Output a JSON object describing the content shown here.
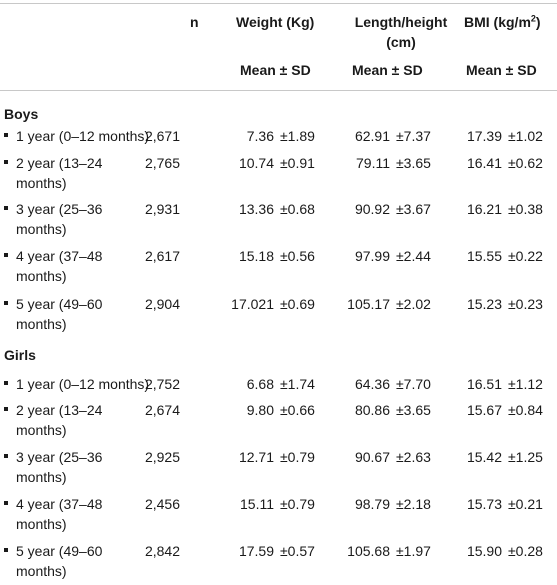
{
  "headers": {
    "n": "n",
    "weight": "Weight (Kg)",
    "length_line1": "Length/height",
    "length_line2": "(cm)",
    "bmi_prefix": "BMI (kg/m",
    "bmi_sup": "2",
    "bmi_suffix": ")",
    "mean_sd": "Mean ± SD"
  },
  "groups": [
    {
      "title": "Boys",
      "rows": [
        {
          "label1": "1 year (0–12 months)",
          "label2": "",
          "n": "2,671",
          "w_mean": "7.36",
          "w_sd": "±1.89",
          "l_mean": "62.91",
          "l_sd": "±7.37",
          "b_mean": "17.39",
          "b_sd": "±1.02"
        },
        {
          "label1": "2 year (13–24",
          "label2": "months)",
          "n": "2,765",
          "w_mean": "10.74",
          "w_sd": "±0.91",
          "l_mean": "79.11",
          "l_sd": "±3.65",
          "b_mean": "16.41",
          "b_sd": "±0.62"
        },
        {
          "label1": "3 year (25–36",
          "label2": "months)",
          "n": "2,931",
          "w_mean": "13.36",
          "w_sd": "±0.68",
          "l_mean": "90.92",
          "l_sd": "±3.67",
          "b_mean": "16.21",
          "b_sd": "±0.38"
        },
        {
          "label1": "4 year (37–48",
          "label2": "months)",
          "n": "2,617",
          "w_mean": "15.18",
          "w_sd": "±0.56",
          "l_mean": "97.99",
          "l_sd": "±2.44",
          "b_mean": "15.55",
          "b_sd": "±0.22"
        },
        {
          "label1": "5 year (49–60",
          "label2": "months)",
          "n": "2,904",
          "w_mean": "17.021",
          "w_sd": "±0.69",
          "l_mean": "105.17",
          "l_sd": "±2.02",
          "b_mean": "15.23",
          "b_sd": "±0.23"
        }
      ]
    },
    {
      "title": "Girls",
      "rows": [
        {
          "label1": "1 year (0–12 months)",
          "label2": "",
          "n": "2,752",
          "w_mean": "6.68",
          "w_sd": "±1.74",
          "l_mean": "64.36",
          "l_sd": "±7.70",
          "b_mean": "16.51",
          "b_sd": "±1.12"
        },
        {
          "label1": "2 year (13–24",
          "label2": "months)",
          "n": "2,674",
          "w_mean": "9.80",
          "w_sd": "±0.66",
          "l_mean": "80.86",
          "l_sd": "±3.65",
          "b_mean": "15.67",
          "b_sd": "±0.84"
        },
        {
          "label1": "3 year (25–36",
          "label2": "months)",
          "n": "2,925",
          "w_mean": "12.71",
          "w_sd": "±0.79",
          "l_mean": "90.67",
          "l_sd": "±2.63",
          "b_mean": "15.42",
          "b_sd": "±1.25"
        },
        {
          "label1": "4 year (37–48",
          "label2": "months)",
          "n": "2,456",
          "w_mean": "15.11",
          "w_sd": "±0.79",
          "l_mean": "98.79",
          "l_sd": "±2.18",
          "b_mean": "15.73",
          "b_sd": "±0.21"
        },
        {
          "label1": "5 year (49–60",
          "label2": "months)",
          "n": "2,842",
          "w_mean": "17.59",
          "w_sd": "±0.57",
          "l_mean": "105.68",
          "l_sd": "±1.97",
          "b_mean": "15.90",
          "b_sd": "±0.28"
        }
      ]
    }
  ]
}
